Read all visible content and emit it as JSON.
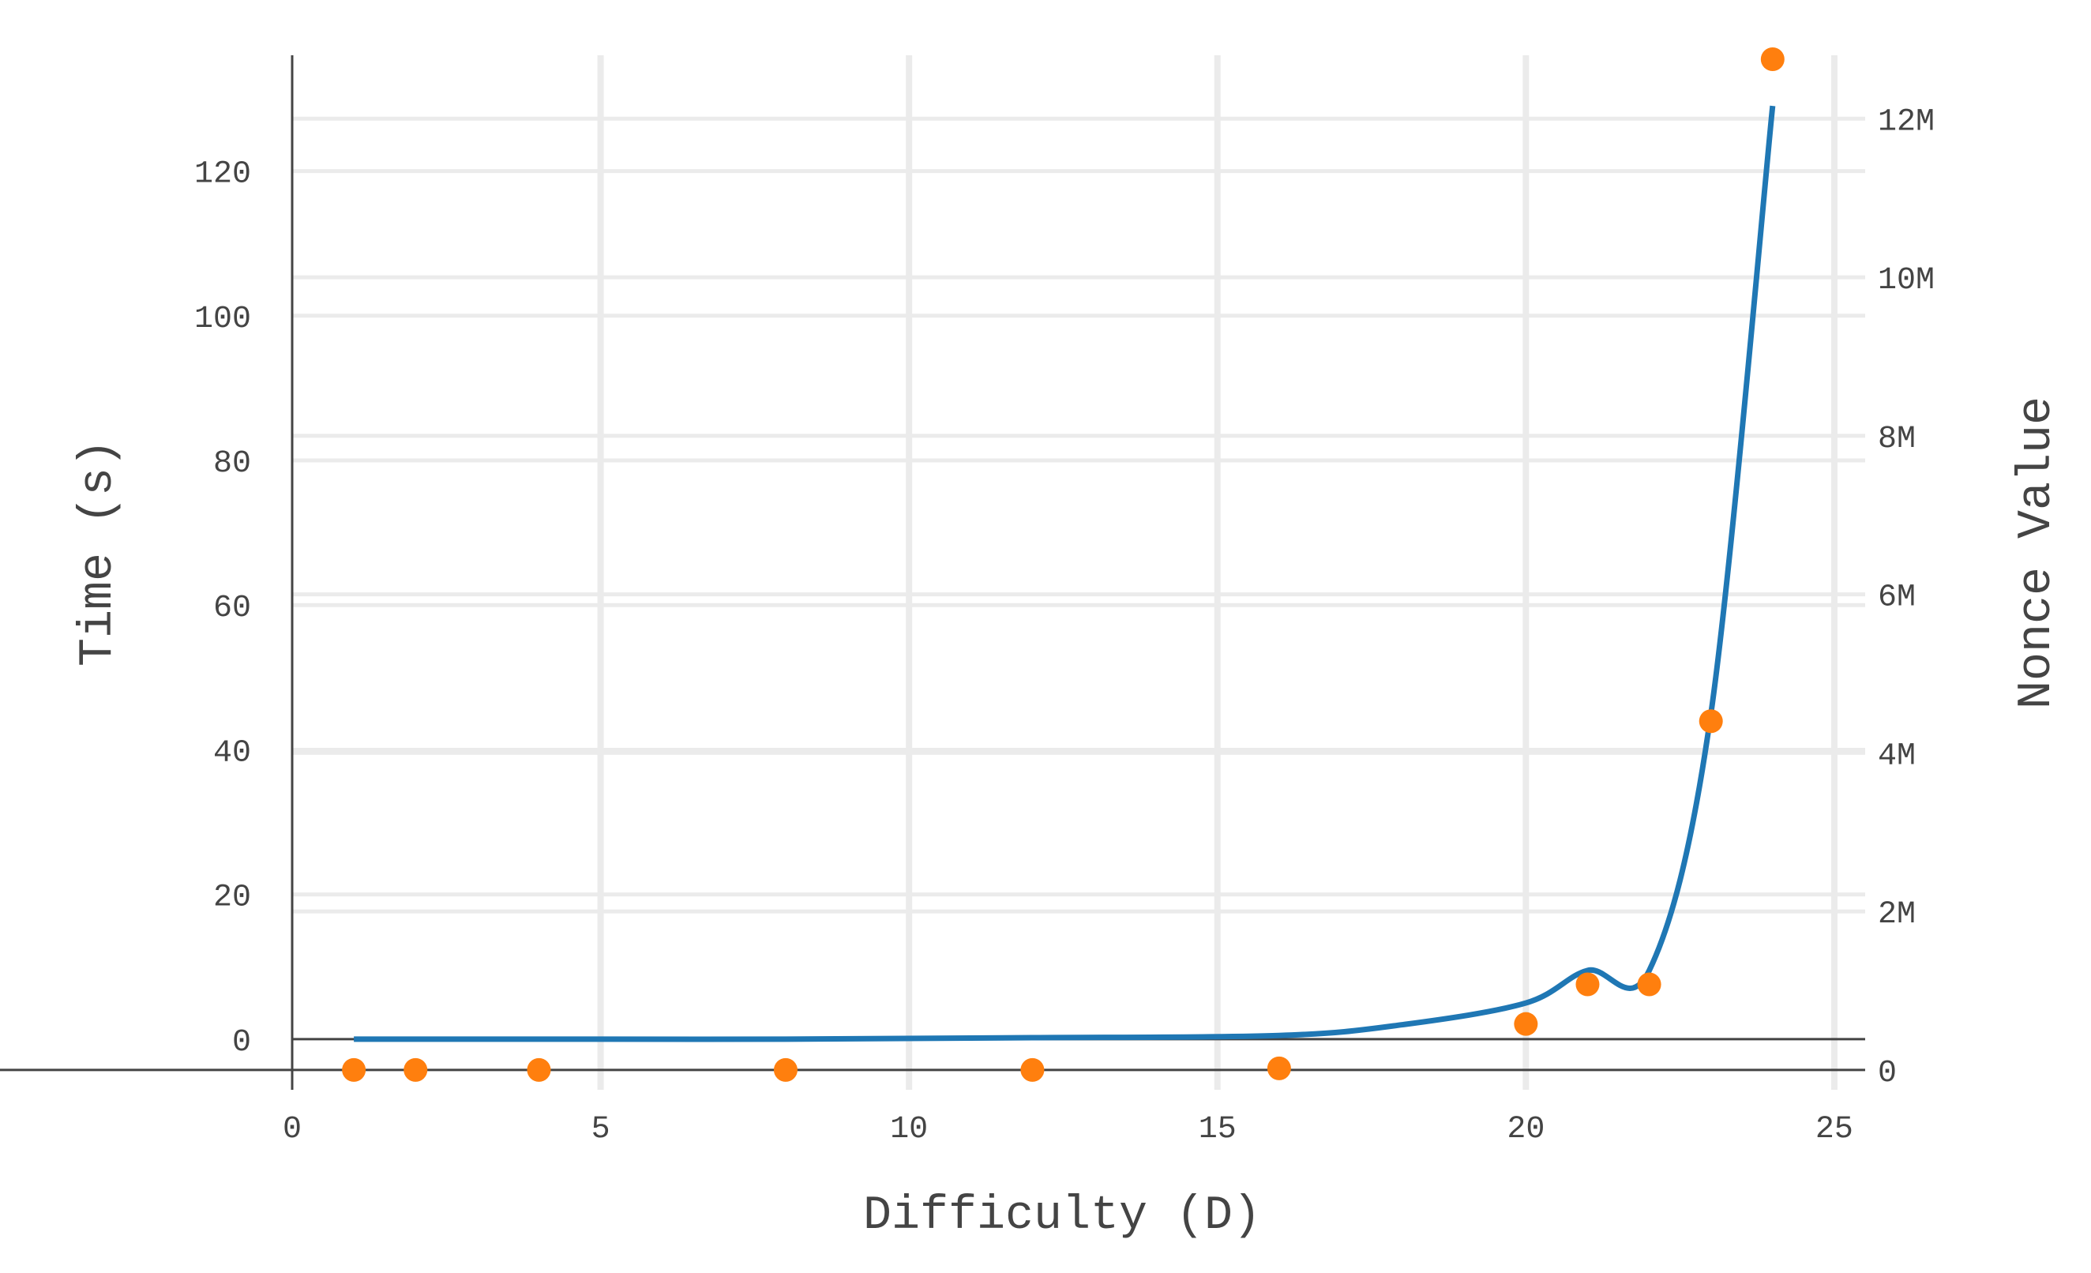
{
  "chart_data": {
    "type": "line",
    "title": "",
    "xlabel": "Difficulty (D)",
    "ylabel": "Time (s)",
    "y2label": "Nonce Value",
    "xlim": [
      0,
      25.5
    ],
    "ylim": [
      -7,
      136
    ],
    "y2lim": [
      -0.25,
      12.8
    ],
    "grid": true,
    "legend": "none",
    "xticks": [
      {
        "value": 0,
        "label": "0"
      },
      {
        "value": 5,
        "label": "5"
      },
      {
        "value": 10,
        "label": "10"
      },
      {
        "value": 15,
        "label": "15"
      },
      {
        "value": 20,
        "label": "20"
      },
      {
        "value": 25,
        "label": "25"
      }
    ],
    "yticks": [
      {
        "value": 0,
        "label": "0"
      },
      {
        "value": 20,
        "label": "20"
      },
      {
        "value": 40,
        "label": "40"
      },
      {
        "value": 60,
        "label": "60"
      },
      {
        "value": 80,
        "label": "80"
      },
      {
        "value": 100,
        "label": "100"
      },
      {
        "value": 120,
        "label": "120"
      }
    ],
    "y2ticks": [
      {
        "value": 0,
        "label": "0"
      },
      {
        "value": 2,
        "label": "2M"
      },
      {
        "value": 4,
        "label": "4M"
      },
      {
        "value": 6,
        "label": "6M"
      },
      {
        "value": 8,
        "label": "8M"
      },
      {
        "value": 10,
        "label": "10M"
      },
      {
        "value": 12,
        "label": "12M"
      }
    ],
    "series": [
      {
        "type": "line",
        "axis": "left",
        "color": "#1f77b4",
        "x": [
          1,
          2,
          4,
          8,
          12,
          16,
          18,
          20,
          21,
          22,
          23,
          24
        ],
        "y": [
          0,
          0,
          0,
          0,
          0.2,
          0.5,
          2,
          5,
          9.5,
          9.5,
          45,
          129
        ]
      },
      {
        "type": "scatter",
        "axis": "right",
        "color": "#ff7f0e",
        "x": [
          1,
          2,
          4,
          8,
          12,
          16,
          20,
          21,
          22,
          23,
          24
        ],
        "y": [
          0,
          0,
          0,
          0,
          0,
          0.02,
          0.58,
          1.08,
          1.08,
          4.4,
          12.75
        ]
      }
    ]
  }
}
